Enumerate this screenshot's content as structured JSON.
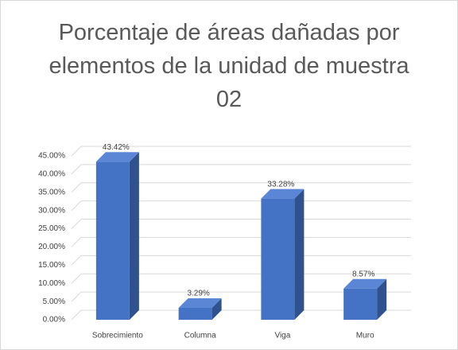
{
  "chart_data": {
    "type": "bar",
    "title": "Porcentaje de áreas dañadas por elementos de la unidad de muestra 02",
    "categories": [
      "Sobrecimiento",
      "Columna",
      "Viga",
      "Muro"
    ],
    "values": [
      43.42,
      3.29,
      33.28,
      8.57
    ],
    "value_labels": [
      "43.42%",
      "3.29%",
      "33.28%",
      "8.57%"
    ],
    "color": "#4472c4",
    "ylim": [
      0,
      45
    ],
    "yticks": [
      {
        "value": 0,
        "label": "0.00%"
      },
      {
        "value": 5,
        "label": "5.00%"
      },
      {
        "value": 10,
        "label": "10.00%"
      },
      {
        "value": 15,
        "label": "15.00%"
      },
      {
        "value": 20,
        "label": "20.00%"
      },
      {
        "value": 25,
        "label": "25.00%"
      },
      {
        "value": 30,
        "label": "30.00%"
      },
      {
        "value": 35,
        "label": "35.00%"
      },
      {
        "value": 40,
        "label": "40.00%"
      },
      {
        "value": 45,
        "label": "45.00%"
      }
    ],
    "grid": true
  }
}
